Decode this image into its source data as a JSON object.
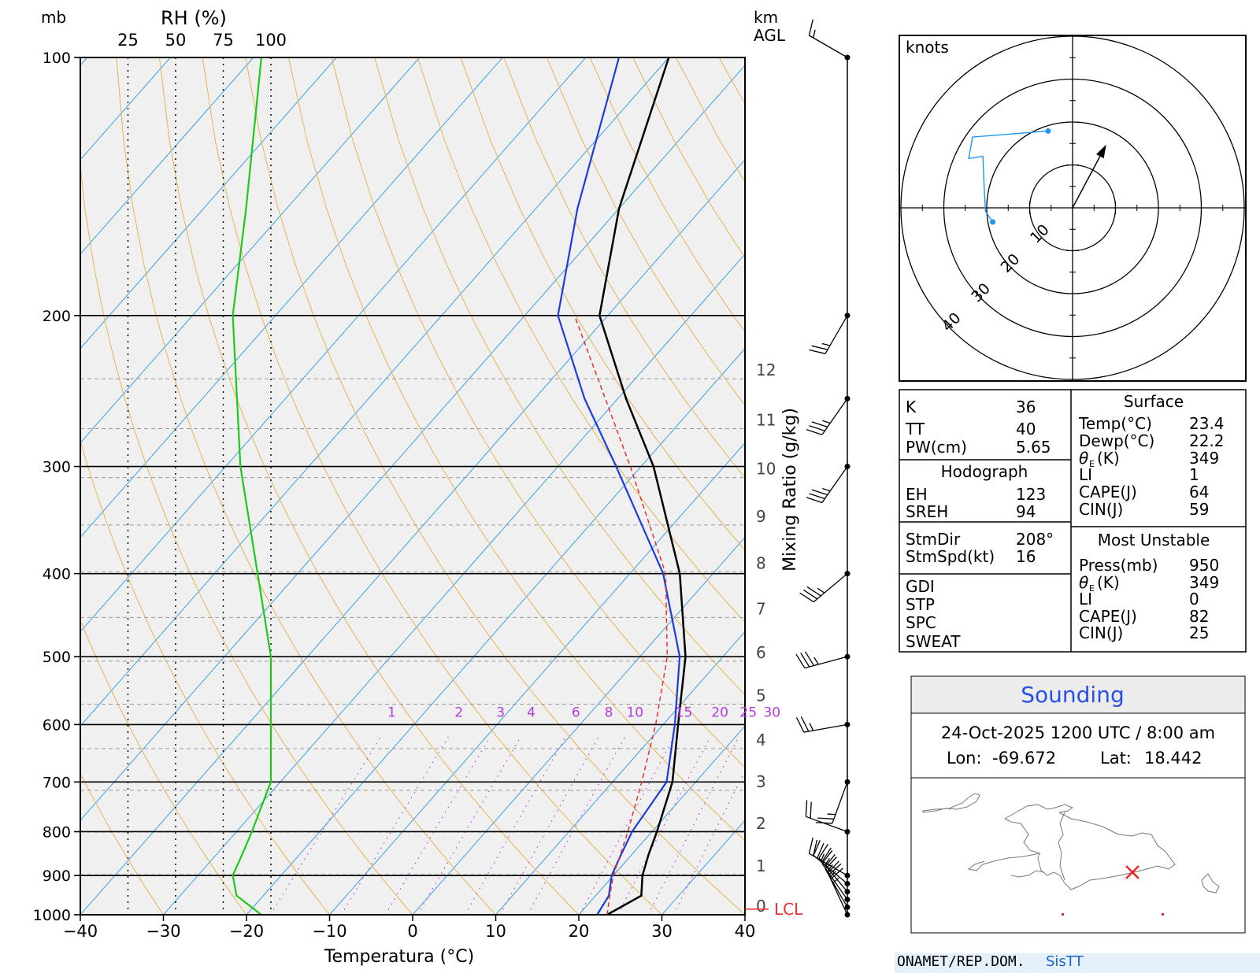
{
  "skewt": {
    "left_header": "mb",
    "rh_header": "RH (%)",
    "rh_ticks": [
      "25",
      "50",
      "75",
      "100"
    ],
    "right_header": [
      "km",
      "AGL"
    ],
    "pressure_ticks": [
      "100",
      "200",
      "300",
      "400",
      "500",
      "600",
      "700",
      "800",
      "900",
      "1000"
    ],
    "temp_ticks": [
      "−40",
      "−30",
      "−20",
      "−10",
      "0",
      "10",
      "20",
      "30",
      "40"
    ],
    "xlabel": "Temperatura (°C)",
    "height_ticks": [
      "12",
      "11",
      "10",
      "9",
      "8",
      "7",
      "6",
      "5",
      "4",
      "3",
      "2",
      "1",
      "0"
    ],
    "mixing_ratio_label": "Mixing Ratio (g/kg)",
    "mixing_ratio_ticks": [
      "1",
      "2",
      "3",
      "4",
      "6",
      "8",
      "10",
      "15",
      "20",
      "25",
      "30"
    ],
    "lcl_label": "LCL",
    "colors": {
      "temperature": "#000000",
      "dewpoint": "#1e3cdc",
      "rh": "#1ec81e",
      "parcel": "#e63232",
      "isotherm": "#3ca0e6",
      "dry_adiabat": "#e6b450",
      "mixing_ratio": "#b43cdc",
      "background": "#f0f0f0"
    }
  },
  "chart_data": {
    "type": "line",
    "xlabel": "Temperatura (°C)",
    "xlim": [
      -40,
      40
    ],
    "ylim_mb": [
      1000,
      100
    ],
    "y_scale": "log-pressure",
    "grid": true,
    "series": [
      {
        "key": "temperature",
        "values": [
          [
            1000,
            23.4
          ],
          [
            950,
            25.5
          ],
          [
            900,
            23.5
          ],
          [
            850,
            22.0
          ],
          [
            800,
            20.6
          ],
          [
            700,
            17.2
          ],
          [
            600,
            11.8
          ],
          [
            500,
            5.5
          ],
          [
            400,
            -4.0
          ],
          [
            300,
            -18.5
          ],
          [
            250,
            -29.0
          ],
          [
            200,
            -41.0
          ],
          [
            150,
            -50.0
          ],
          [
            100,
            -60.0
          ]
        ]
      },
      {
        "key": "dewpoint",
        "values": [
          [
            1000,
            22.2
          ],
          [
            950,
            21.6
          ],
          [
            900,
            19.8
          ],
          [
            850,
            18.7
          ],
          [
            800,
            17.6
          ],
          [
            700,
            16.5
          ],
          [
            600,
            11.4
          ],
          [
            500,
            4.8
          ],
          [
            400,
            -6.0
          ],
          [
            300,
            -23.0
          ],
          [
            250,
            -34.0
          ],
          [
            200,
            -46.0
          ],
          [
            150,
            -55.0
          ],
          [
            100,
            -66.0
          ]
        ]
      },
      {
        "key": "parcel",
        "values": [
          [
            1000,
            23.4
          ],
          [
            950,
            21.7
          ],
          [
            900,
            20.0
          ],
          [
            800,
            17.1
          ],
          [
            700,
            13.5
          ],
          [
            600,
            9.1
          ],
          [
            500,
            3.3
          ],
          [
            400,
            -5.7
          ],
          [
            300,
            -21.3
          ],
          [
            250,
            -31.5
          ],
          [
            200,
            -44.0
          ]
        ]
      },
      {
        "key": "rh",
        "values": [
          [
            1000,
            95
          ],
          [
            950,
            82
          ],
          [
            900,
            80
          ],
          [
            850,
            85
          ],
          [
            800,
            90
          ],
          [
            700,
            100
          ],
          [
            600,
            100
          ],
          [
            500,
            100
          ],
          [
            400,
            93
          ],
          [
            300,
            84
          ],
          [
            200,
            80
          ],
          [
            150,
            87
          ],
          [
            100,
            95
          ]
        ]
      }
    ]
  },
  "winds": {
    "barbs": [
      {
        "p": 100,
        "dir": 300,
        "spd": 15
      },
      {
        "p": 200,
        "dir": 210,
        "spd": 25
      },
      {
        "p": 250,
        "dir": 215,
        "spd": 35
      },
      {
        "p": 300,
        "dir": 215,
        "spd": 35
      },
      {
        "p": 400,
        "dir": 230,
        "spd": 35
      },
      {
        "p": 500,
        "dir": 255,
        "spd": 35
      },
      {
        "p": 600,
        "dir": 260,
        "spd": 25
      },
      {
        "p": 700,
        "dir": 200,
        "spd": 25
      },
      {
        "p": 800,
        "dir": 290,
        "spd": 20
      },
      {
        "p": 900,
        "dir": 300,
        "spd": 20
      },
      {
        "p": 920,
        "dir": 310,
        "spd": 25
      },
      {
        "p": 940,
        "dir": 320,
        "spd": 25
      },
      {
        "p": 960,
        "dir": 325,
        "spd": 25
      },
      {
        "p": 980,
        "dir": 330,
        "spd": 25
      },
      {
        "p": 1000,
        "dir": 335,
        "spd": 25
      }
    ]
  },
  "hodograph": {
    "unit_label": "knots",
    "ring_labels": [
      "10",
      "20",
      "30",
      "40"
    ],
    "trace_kt": [
      [
        -18.6,
        -3.3
      ],
      [
        -20.3,
        -0.8
      ],
      [
        -20.6,
        5.0
      ],
      [
        -20.9,
        12.0
      ],
      [
        -24.2,
        11.5
      ],
      [
        -23.3,
        16.5
      ],
      [
        -5.7,
        17.9
      ]
    ],
    "storm_motion_kt": {
      "u": 7.5,
      "v": 14.1
    },
    "colors": {
      "trace": "#1e96f0",
      "rings": "#000000"
    }
  },
  "indices": {
    "k_label": "K",
    "k_value": "36",
    "tt_label": "TT",
    "tt_value": "40",
    "pw_label": "PW(cm)",
    "pw_value": "5.65",
    "hodo_title": "Hodograph",
    "eh_label": "EH",
    "eh_value": "123",
    "sreh_label": "SREH",
    "sreh_value": "94",
    "stmdir_label": "StmDir",
    "stmdir_value": "208°",
    "stmspd_label": "StmSpd(kt)",
    "stmspd_value": "16",
    "gdi_label": "GDI",
    "stp_label": "STP",
    "spc_label": "SPC",
    "sweat_label": "SWEAT"
  },
  "surface": {
    "title": "Surface",
    "temp_label": "Temp(°C)",
    "temp_value": "23.4",
    "dewp_label": "Dewp(°C)",
    "dewp_value": "22.2",
    "thetae_label": "(K)",
    "thetae_value": "349",
    "li_label": "LI",
    "li_value": "1",
    "cape_label": "CAPE(J)",
    "cape_value": "64",
    "cin_label": "CIN(J)",
    "cin_value": "59"
  },
  "most_unstable": {
    "title": "Most Unstable",
    "press_label": "Press(mb)",
    "press_value": "950",
    "thetae_label": "(K)",
    "thetae_value": "349",
    "li_label": "LI",
    "li_value": "0",
    "cape_label": "CAPE(J)",
    "cape_value": "82",
    "cin_label": "CIN(J)",
    "cin_value": "25"
  },
  "sounding_box": {
    "title": "Sounding",
    "datetime": "24-Oct-2025 1200 UTC / 8:00 am",
    "lon_label": "Lon:",
    "lon_value": "-69.672",
    "lat_label": "Lat:",
    "lat_value": "18.442",
    "title_color": "#2850e6",
    "marker_color": "#e62828"
  },
  "footer": {
    "source": "ONAMET/REP.DOM.",
    "brand": "SisTT"
  }
}
